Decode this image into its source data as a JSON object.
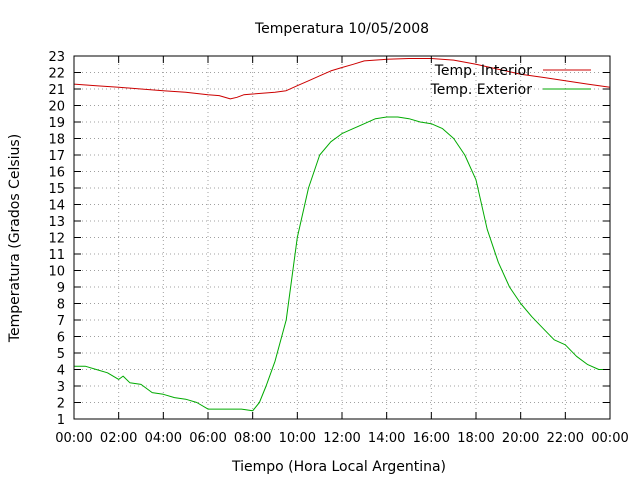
{
  "chart_data": {
    "type": "line",
    "title": "Temperatura 10/05/2008",
    "xlabel": "Tiempo (Hora Local Argentina)",
    "ylabel": "Temperatura (Grados Celsius)",
    "xlim": [
      0,
      24
    ],
    "ylim": [
      1,
      23
    ],
    "x_tick_labels": [
      "00:00",
      "02:00",
      "04:00",
      "06:00",
      "08:00",
      "10:00",
      "12:00",
      "14:00",
      "16:00",
      "18:00",
      "20:00",
      "22:00",
      "00:00"
    ],
    "y_ticks": [
      1,
      2,
      3,
      4,
      5,
      6,
      7,
      8,
      9,
      10,
      11,
      12,
      13,
      14,
      15,
      16,
      17,
      18,
      19,
      20,
      21,
      22,
      23
    ],
    "grid": true,
    "legend_position": "top-right",
    "series": [
      {
        "name": "Temp. Interior",
        "color": "#cc0000",
        "x": [
          0,
          1,
          2,
          3,
          4,
          5,
          6,
          6.5,
          7,
          7.3,
          7.6,
          8,
          9,
          9.5,
          10,
          10.5,
          11,
          11.5,
          12,
          12.5,
          13,
          14,
          15,
          16,
          17,
          18,
          19,
          20,
          21,
          22,
          23,
          24
        ],
        "y": [
          21.3,
          21.2,
          21.1,
          21.0,
          20.9,
          20.8,
          20.65,
          20.6,
          20.4,
          20.5,
          20.65,
          20.7,
          20.8,
          20.9,
          21.2,
          21.5,
          21.8,
          22.1,
          22.3,
          22.5,
          22.7,
          22.8,
          22.85,
          22.85,
          22.75,
          22.5,
          22.2,
          21.9,
          21.7,
          21.5,
          21.3,
          21.1
        ]
      },
      {
        "name": "Temp. Exterior",
        "color": "#00aa00",
        "x": [
          0,
          0.5,
          1,
          1.5,
          2,
          2.2,
          2.5,
          3,
          3.5,
          4,
          4.5,
          5,
          5.5,
          6,
          6.5,
          7,
          7.5,
          8,
          8.3,
          8.6,
          9,
          9.5,
          10,
          10.5,
          11,
          11.5,
          12,
          12.5,
          13,
          13.5,
          14,
          14.5,
          15,
          15.5,
          16,
          16.5,
          17,
          17.5,
          18,
          18.5,
          19,
          19.5,
          20,
          20.5,
          21,
          21.5,
          22,
          22.5,
          23,
          23.5,
          24
        ],
        "y": [
          4.2,
          4.2,
          4.0,
          3.8,
          3.4,
          3.6,
          3.2,
          3.1,
          2.6,
          2.5,
          2.3,
          2.2,
          2.0,
          1.6,
          1.6,
          1.6,
          1.6,
          1.5,
          2.0,
          3.0,
          4.5,
          7.0,
          12.0,
          15.0,
          17.0,
          17.8,
          18.3,
          18.6,
          18.9,
          19.2,
          19.3,
          19.3,
          19.2,
          19.0,
          18.9,
          18.6,
          18.0,
          17.0,
          15.5,
          12.5,
          10.5,
          9.0,
          8.0,
          7.2,
          6.5,
          5.8,
          5.5,
          4.8,
          4.3,
          4.0,
          4.0
        ]
      }
    ]
  }
}
